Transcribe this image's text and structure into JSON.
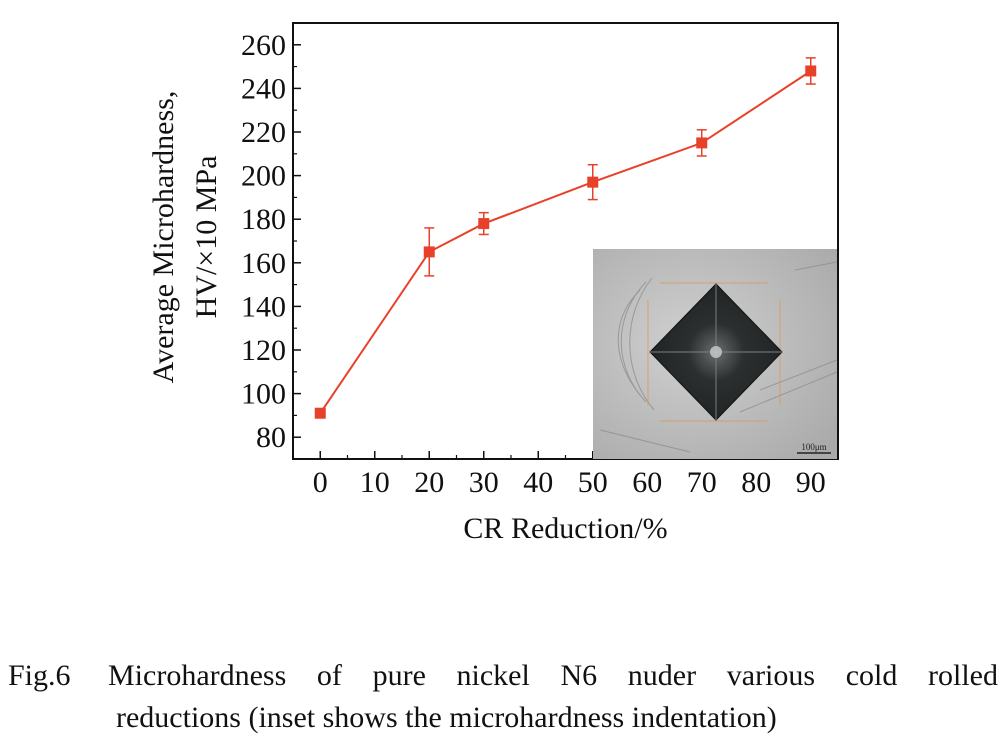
{
  "chart_data": {
    "type": "line",
    "xlabel": "CR Reduction/%",
    "ylabel_line1": "Average Microhardness,",
    "ylabel_line2": "HV/×10 MPa",
    "xlim": [
      -5,
      95
    ],
    "ylim": [
      70,
      270
    ],
    "x_ticks": [
      0,
      10,
      20,
      30,
      40,
      50,
      60,
      70,
      80,
      90
    ],
    "y_ticks": [
      80,
      100,
      120,
      140,
      160,
      180,
      200,
      220,
      240,
      260
    ],
    "series_color": "#e8412a",
    "points": [
      {
        "x": 0,
        "y": 91,
        "err": 2
      },
      {
        "x": 20,
        "y": 165,
        "err": 11
      },
      {
        "x": 30,
        "y": 178,
        "err": 5
      },
      {
        "x": 50,
        "y": 197,
        "err": 8
      },
      {
        "x": 70,
        "y": 215,
        "err": 6
      },
      {
        "x": 90,
        "y": 248,
        "err": 6
      }
    ],
    "inset_scale_label": "100μm"
  },
  "caption": {
    "fig_label": "Fig.6",
    "line1": "Microhardness of pure nickel N6 nuder various cold rolled",
    "line2": "reductions (inset shows the microhardness indentation)"
  }
}
